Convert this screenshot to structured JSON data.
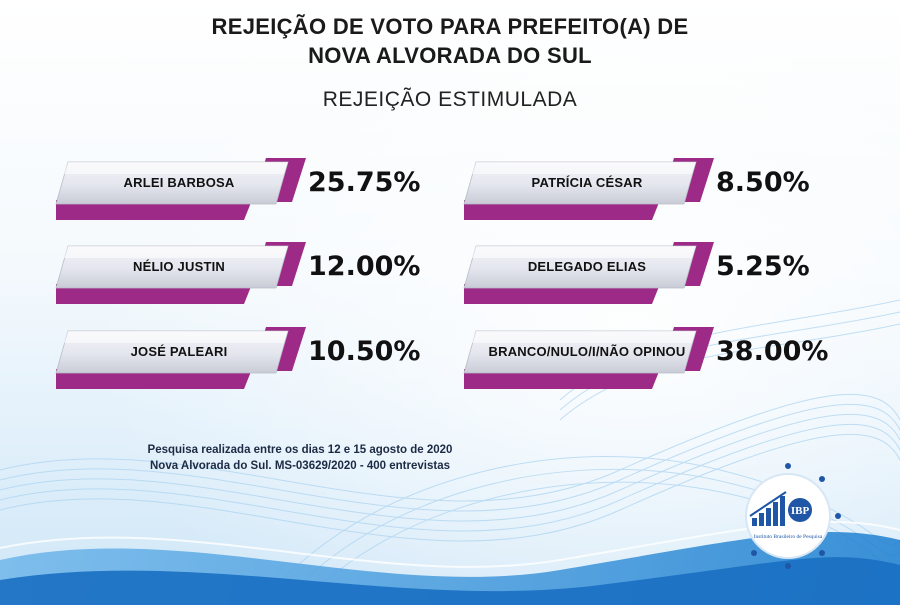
{
  "header": {
    "title_line1": "REJEIÇÃO DE VOTO PARA PREFEITO(A) DE",
    "title_line2": "NOVA ALVORADA DO SUL",
    "subtitle": "REJEIÇÃO ESTIMULADA"
  },
  "chart_data": {
    "type": "table",
    "title": "REJEIÇÃO DE VOTO PARA PREFEITO(A) DE NOVA ALVORADA DO SUL",
    "subtitle": "REJEIÇÃO ESTIMULADA",
    "rows": [
      {
        "name": "ARLEI BARBOSA",
        "value": 25.75,
        "label": "25.75%"
      },
      {
        "name": "NÉLIO JUSTIN",
        "value": 12.0,
        "label": "12.00%"
      },
      {
        "name": "JOSÉ PALEARI",
        "value": 10.5,
        "label": "10.50%"
      },
      {
        "name": "PATRÍCIA CÉSAR",
        "value": 8.5,
        "label": "8.50%"
      },
      {
        "name": "DELEGADO ELIAS",
        "value": 5.25,
        "label": "5.25%"
      },
      {
        "name": "BRANCO/NULO/I/NÃO OPINOU",
        "value": 38.0,
        "label": "38.00%"
      }
    ]
  },
  "footer": {
    "line1": "Pesquisa realizada entre os dias 12 e 15 agosto de 2020",
    "line2": "Nova Alvorada do Sul.  MS-03629/2020 - 400 entrevistas"
  },
  "logo": {
    "mark": "IBP",
    "caption": "Instituto Brasileiro de Pesquisa"
  },
  "colors": {
    "accent": "#9c2a86",
    "accent_light": "#c24aa6",
    "plate_light": "#f4f4f8",
    "plate_mid": "#c9ccd6",
    "logo_blue": "#1f56a6"
  }
}
